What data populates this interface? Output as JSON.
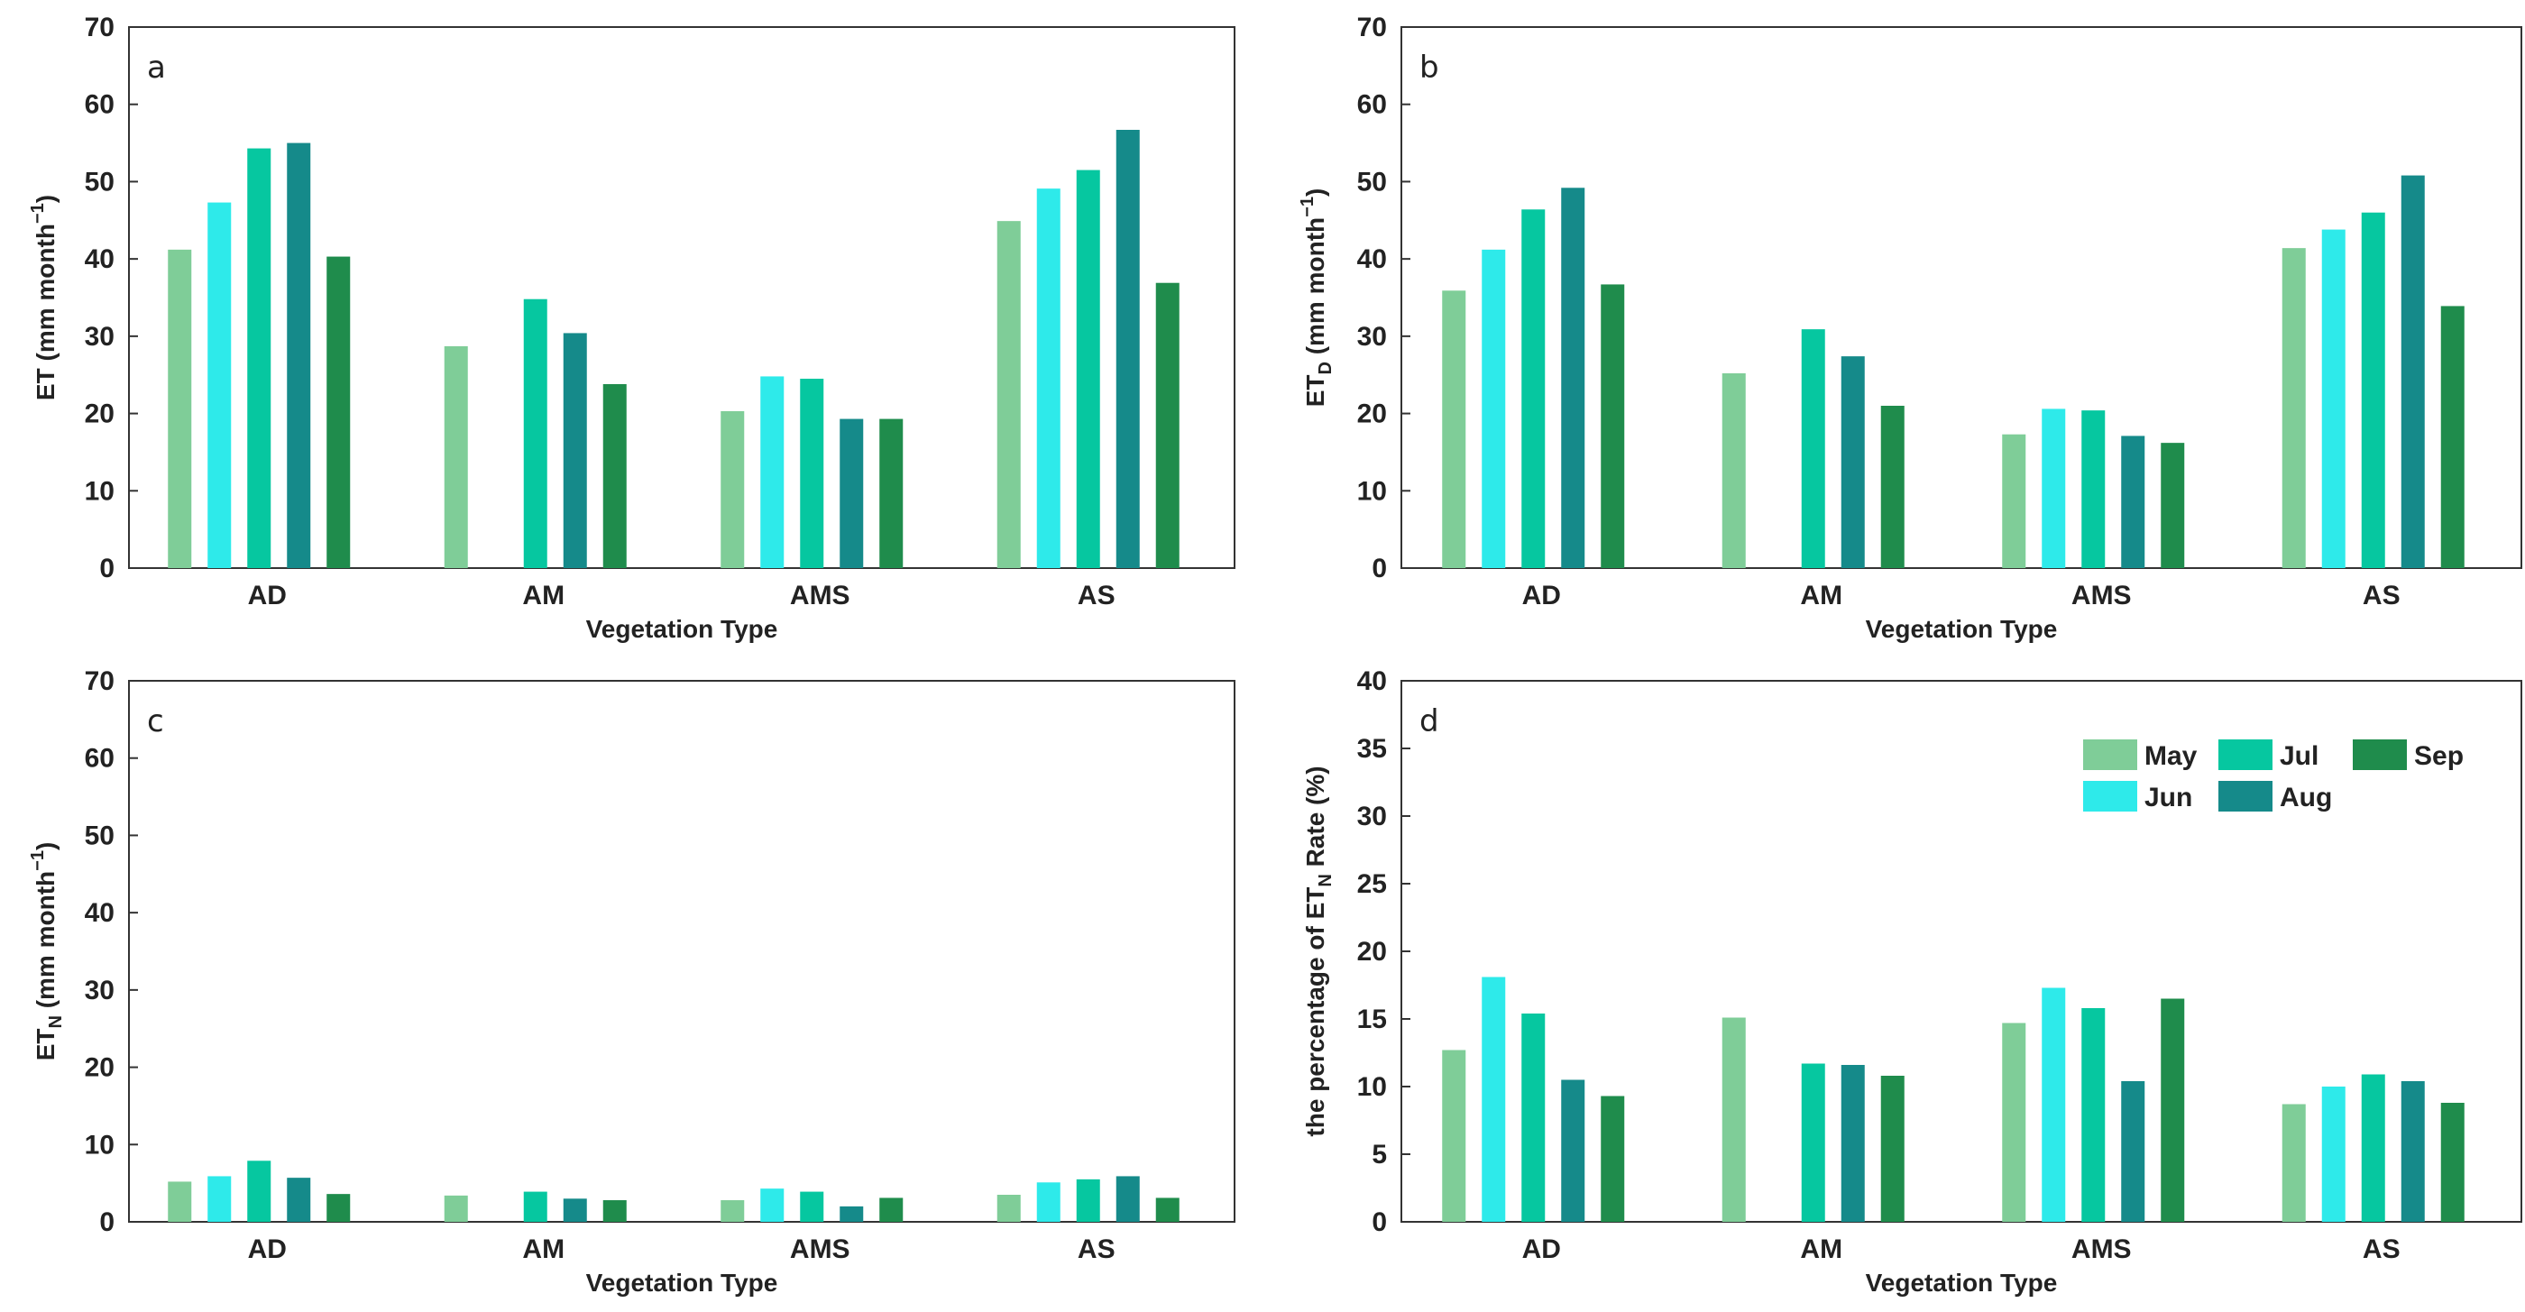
{
  "legend": {
    "entries": [
      {
        "name": "May",
        "color": "#7fcd98"
      },
      {
        "name": "Jun",
        "color": "#2eeaea"
      },
      {
        "name": "Jul",
        "color": "#06c7a0"
      },
      {
        "name": "Aug",
        "color": "#158a8a"
      },
      {
        "name": "Sep",
        "color": "#1f8c4c"
      }
    ]
  },
  "chart_data": [
    {
      "panel_label": "a",
      "type": "bar",
      "categories": [
        "AD",
        "AM",
        "AMS",
        "AS"
      ],
      "xlabel": "Vegetation Type",
      "ylabel": {
        "main": "ET (mm month",
        "sup": "−1",
        "close": ")"
      },
      "ylim": [
        0,
        70
      ],
      "yticks": [
        0,
        10,
        20,
        30,
        40,
        50,
        60,
        70
      ],
      "series": [
        {
          "name": "May",
          "values": [
            41.2,
            28.7,
            20.3,
            44.9
          ]
        },
        {
          "name": "Jun",
          "values": [
            47.3,
            null,
            24.8,
            49.1
          ]
        },
        {
          "name": "Jul",
          "values": [
            54.3,
            34.8,
            24.5,
            51.5
          ]
        },
        {
          "name": "Aug",
          "values": [
            55.0,
            30.4,
            19.3,
            56.7
          ]
        },
        {
          "name": "Sep",
          "values": [
            40.3,
            23.8,
            19.3,
            36.9
          ]
        }
      ]
    },
    {
      "panel_label": "b",
      "type": "bar",
      "categories": [
        "AD",
        "AM",
        "AMS",
        "AS"
      ],
      "xlabel": "Vegetation Type",
      "ylabel": {
        "main": "ET",
        "sub": "D",
        "rest": " (mm month",
        "sup": "−1",
        "close": ")"
      },
      "ylim": [
        0,
        70
      ],
      "yticks": [
        0,
        10,
        20,
        30,
        40,
        50,
        60,
        70
      ],
      "series": [
        {
          "name": "May",
          "values": [
            35.9,
            25.2,
            17.3,
            41.4
          ]
        },
        {
          "name": "Jun",
          "values": [
            41.2,
            null,
            20.6,
            43.8
          ]
        },
        {
          "name": "Jul",
          "values": [
            46.4,
            30.9,
            20.4,
            46.0
          ]
        },
        {
          "name": "Aug",
          "values": [
            49.2,
            27.4,
            17.1,
            50.8
          ]
        },
        {
          "name": "Sep",
          "values": [
            36.7,
            21.0,
            16.2,
            33.9
          ]
        }
      ]
    },
    {
      "panel_label": "c",
      "type": "bar",
      "categories": [
        "AD",
        "AM",
        "AMS",
        "AS"
      ],
      "xlabel": "Vegetation Type",
      "ylabel": {
        "main": "ET",
        "sub": "N",
        "rest": " (mm month",
        "sup": "−1",
        "close": ")"
      },
      "ylim": [
        0,
        70
      ],
      "yticks": [
        0,
        10,
        20,
        30,
        40,
        50,
        60,
        70
      ],
      "series": [
        {
          "name": "May",
          "values": [
            5.2,
            3.4,
            2.8,
            3.5
          ]
        },
        {
          "name": "Jun",
          "values": [
            5.9,
            null,
            4.3,
            5.1
          ]
        },
        {
          "name": "Jul",
          "values": [
            7.9,
            3.9,
            3.9,
            5.5
          ]
        },
        {
          "name": "Aug",
          "values": [
            5.7,
            3.0,
            2.0,
            5.9
          ]
        },
        {
          "name": "Sep",
          "values": [
            3.6,
            2.8,
            3.1,
            3.1
          ]
        }
      ]
    },
    {
      "panel_label": "d",
      "type": "bar",
      "categories": [
        "AD",
        "AM",
        "AMS",
        "AS"
      ],
      "xlabel": "Vegetation Type",
      "ylabel": {
        "main": "the percentage of ET",
        "sub": "N",
        "rest": " Rate (%)"
      },
      "ylim": [
        0,
        40
      ],
      "yticks": [
        0,
        5,
        10,
        15,
        20,
        25,
        30,
        35,
        40
      ],
      "legend_position": "top-right",
      "series": [
        {
          "name": "May",
          "values": [
            12.7,
            15.1,
            14.7,
            8.7
          ]
        },
        {
          "name": "Jun",
          "values": [
            18.1,
            null,
            17.3,
            10.0
          ]
        },
        {
          "name": "Jul",
          "values": [
            15.4,
            11.7,
            15.8,
            10.9
          ]
        },
        {
          "name": "Aug",
          "values": [
            10.5,
            11.6,
            10.4,
            10.4
          ]
        },
        {
          "name": "Sep",
          "values": [
            9.3,
            10.8,
            16.5,
            8.8
          ]
        }
      ]
    }
  ]
}
